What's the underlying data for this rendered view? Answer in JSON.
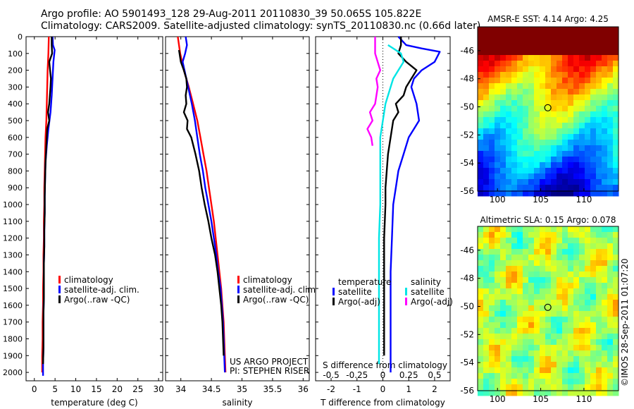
{
  "header": {
    "line1": "Argo profile: AO 5901493_128 29-Aug-2011 20110830_39 50.065S 105.822E",
    "line2": "Climatology: CARS2009. Satellite-adjusted climatology: synTS_20110830.nc (0.66d later)"
  },
  "credits": {
    "project": "US ARGO PROJECT",
    "pi": "PI: STEPHEN RISER",
    "imos": "©IMOS 28-Sep-2011 01:07:20"
  },
  "colors": {
    "climatology": "#ff0000",
    "satellite": "#0000ff",
    "argo": "#000000",
    "s_satellite": "#00e5e5",
    "s_argo": "#ff00ff",
    "sst_circle": "#000000"
  },
  "chart_data": [
    {
      "type": "line",
      "xlabel": "temperature (deg C)",
      "ylabel": "",
      "xlim": [
        -2,
        31
      ],
      "ylim": [
        2050,
        0
      ],
      "xticks": [
        0,
        5,
        10,
        15,
        20,
        25,
        30
      ],
      "yticks": [
        0,
        100,
        200,
        300,
        400,
        500,
        600,
        700,
        800,
        900,
        1000,
        1100,
        1200,
        1300,
        1400,
        1500,
        1600,
        1700,
        1800,
        1900,
        2000
      ],
      "legend": [
        "climatology",
        "satellite-adj. clim.",
        "Argo(..raw -QC)"
      ],
      "series": [
        {
          "name": "climatology",
          "color": "#ff0000",
          "points": [
            [
              3.5,
              0
            ],
            [
              3.4,
              100
            ],
            [
              3.2,
              200
            ],
            [
              3.1,
              300
            ],
            [
              3.0,
              400
            ],
            [
              2.9,
              500
            ],
            [
              2.7,
              600
            ],
            [
              2.6,
              700
            ],
            [
              2.5,
              800
            ],
            [
              2.4,
              900
            ],
            [
              2.4,
              1000
            ],
            [
              2.3,
              1100
            ],
            [
              2.3,
              1200
            ],
            [
              2.2,
              1300
            ],
            [
              2.2,
              1400
            ],
            [
              2.1,
              1500
            ],
            [
              2.1,
              1600
            ],
            [
              2.0,
              1700
            ],
            [
              2.0,
              1800
            ],
            [
              1.9,
              1900
            ],
            [
              1.9,
              2000
            ]
          ]
        },
        {
          "name": "satellite-adj. clim.",
          "color": "#0000ff",
          "points": [
            [
              4.4,
              0
            ],
            [
              4.5,
              50
            ],
            [
              4.9,
              80
            ],
            [
              4.6,
              150
            ],
            [
              4.4,
              250
            ],
            [
              4.2,
              350
            ],
            [
              3.9,
              450
            ],
            [
              3.4,
              550
            ],
            [
              3.0,
              650
            ],
            [
              2.7,
              750
            ],
            [
              2.6,
              850
            ],
            [
              2.5,
              950
            ],
            [
              2.5,
              1050
            ],
            [
              2.4,
              1150
            ],
            [
              2.4,
              1250
            ],
            [
              2.3,
              1350
            ],
            [
              2.3,
              1450
            ],
            [
              2.3,
              1550
            ],
            [
              2.2,
              1650
            ],
            [
              2.2,
              1750
            ],
            [
              2.2,
              1850
            ],
            [
              2.1,
              1950
            ],
            [
              2.1,
              2020
            ]
          ]
        },
        {
          "name": "Argo(..raw -QC)",
          "color": "#000000",
          "points": [
            [
              4.2,
              0
            ],
            [
              4.2,
              50
            ],
            [
              4.3,
              100
            ],
            [
              3.6,
              150
            ],
            [
              3.8,
              200
            ],
            [
              4.0,
              250
            ],
            [
              3.9,
              300
            ],
            [
              3.6,
              400
            ],
            [
              3.3,
              450
            ],
            [
              3.6,
              500
            ],
            [
              3.1,
              550
            ],
            [
              2.9,
              650
            ],
            [
              2.7,
              750
            ],
            [
              2.6,
              850
            ],
            [
              2.5,
              950
            ],
            [
              2.5,
              1050
            ],
            [
              2.4,
              1150
            ],
            [
              2.4,
              1250
            ],
            [
              2.3,
              1350
            ],
            [
              2.3,
              1450
            ],
            [
              2.3,
              1550
            ],
            [
              2.2,
              1650
            ],
            [
              2.2,
              1750
            ],
            [
              2.2,
              1850
            ],
            [
              2.1,
              1950
            ]
          ]
        }
      ]
    },
    {
      "type": "line",
      "xlabel": "salinity",
      "ylabel": "",
      "xlim": [
        33.75,
        36.1
      ],
      "ylim": [
        2050,
        0
      ],
      "xticks": [
        34,
        34.5,
        35,
        35.5,
        36
      ],
      "legend": [
        "climatology",
        "satellite-adj. clim.",
        "Argo(..raw -QC)"
      ],
      "series": [
        {
          "name": "climatology",
          "color": "#ff0000",
          "points": [
            [
              33.95,
              0
            ],
            [
              33.99,
              100
            ],
            [
              34.05,
              200
            ],
            [
              34.13,
              300
            ],
            [
              34.2,
              400
            ],
            [
              34.27,
              500
            ],
            [
              34.32,
              600
            ],
            [
              34.37,
              700
            ],
            [
              34.42,
              800
            ],
            [
              34.46,
              900
            ],
            [
              34.5,
              1000
            ],
            [
              34.54,
              1100
            ],
            [
              34.57,
              1200
            ],
            [
              34.6,
              1300
            ],
            [
              34.63,
              1400
            ],
            [
              34.66,
              1500
            ],
            [
              34.68,
              1600
            ],
            [
              34.7,
              1700
            ],
            [
              34.71,
              1800
            ],
            [
              34.72,
              1900
            ],
            [
              34.73,
              2000
            ]
          ]
        },
        {
          "name": "satellite-adj. clim.",
          "color": "#0000ff",
          "points": [
            [
              34.08,
              0
            ],
            [
              34.1,
              50
            ],
            [
              34.07,
              100
            ],
            [
              34.03,
              150
            ],
            [
              34.06,
              200
            ],
            [
              34.12,
              300
            ],
            [
              34.18,
              400
            ],
            [
              34.23,
              500
            ],
            [
              34.27,
              600
            ],
            [
              34.31,
              700
            ],
            [
              34.36,
              800
            ],
            [
              34.4,
              900
            ],
            [
              34.45,
              1000
            ],
            [
              34.5,
              1100
            ],
            [
              34.54,
              1200
            ],
            [
              34.58,
              1300
            ],
            [
              34.61,
              1400
            ],
            [
              34.65,
              1500
            ],
            [
              34.67,
              1600
            ],
            [
              34.69,
              1700
            ],
            [
              34.7,
              1800
            ],
            [
              34.71,
              1900
            ],
            [
              34.72,
              2000
            ]
          ]
        },
        {
          "name": "Argo(..raw -QC)",
          "color": "#000000",
          "points": [
            [
              33.97,
              80
            ],
            [
              34.0,
              150
            ],
            [
              34.05,
              200
            ],
            [
              34.09,
              250
            ],
            [
              34.1,
              300
            ],
            [
              34.08,
              350
            ],
            [
              34.09,
              400
            ],
            [
              34.05,
              450
            ],
            [
              34.11,
              500
            ],
            [
              34.1,
              550
            ],
            [
              34.17,
              600
            ],
            [
              34.24,
              700
            ],
            [
              34.3,
              800
            ],
            [
              34.34,
              900
            ],
            [
              34.39,
              1000
            ],
            [
              34.45,
              1100
            ],
            [
              34.5,
              1200
            ],
            [
              34.56,
              1300
            ],
            [
              34.6,
              1400
            ],
            [
              34.63,
              1500
            ],
            [
              34.66,
              1600
            ],
            [
              34.68,
              1700
            ],
            [
              34.69,
              1800
            ],
            [
              34.7,
              1900
            ]
          ]
        }
      ]
    },
    {
      "type": "line",
      "xlabel": "T difference from climatology",
      "title": "S difference from climatology",
      "ylabel": "",
      "xlim": [
        -2.6,
        2.6
      ],
      "ylim": [
        2050,
        0
      ],
      "xticks": [
        -2,
        -1,
        0,
        1,
        2
      ],
      "top_tick_labels": [
        "-0.5",
        "-0.25",
        "0",
        "0.25",
        "0.5"
      ],
      "legend": [
        "temperature",
        "satellite",
        "Argo(-adj)",
        "salinity",
        "satellite",
        "Argo(-adj)"
      ],
      "series": [
        {
          "name": "satellite",
          "color": "#0000ff",
          "points": [
            [
              0.6,
              0
            ],
            [
              0.9,
              50
            ],
            [
              1.5,
              70
            ],
            [
              2.2,
              90
            ],
            [
              2.0,
              150
            ],
            [
              1.5,
              200
            ],
            [
              1.2,
              250
            ],
            [
              1.1,
              300
            ],
            [
              1.3,
              400
            ],
            [
              1.4,
              500
            ],
            [
              1.2,
              550
            ],
            [
              1.0,
              600
            ],
            [
              0.8,
              700
            ],
            [
              0.6,
              800
            ],
            [
              0.5,
              900
            ],
            [
              0.4,
              1000
            ],
            [
              0.35,
              1200
            ],
            [
              0.3,
              1400
            ],
            [
              0.3,
              1600
            ],
            [
              0.3,
              1800
            ],
            [
              0.3,
              2000
            ]
          ]
        },
        {
          "name": "Argo(-adj)",
          "color": "#000000",
          "points": [
            [
              0.7,
              0
            ],
            [
              0.7,
              50
            ],
            [
              0.6,
              100
            ],
            [
              0.9,
              150
            ],
            [
              1.3,
              200
            ],
            [
              1.1,
              250
            ],
            [
              0.9,
              300
            ],
            [
              0.8,
              350
            ],
            [
              0.5,
              400
            ],
            [
              0.6,
              450
            ],
            [
              0.4,
              500
            ],
            [
              0.3,
              600
            ],
            [
              0.2,
              700
            ],
            [
              0.15,
              800
            ],
            [
              0.1,
              900
            ],
            [
              0.1,
              1000
            ],
            [
              0.05,
              1200
            ],
            [
              0.05,
              1400
            ],
            [
              0.05,
              1600
            ],
            [
              0.05,
              1800
            ],
            [
              0.05,
              1900
            ]
          ]
        },
        {
          "name": "satellite",
          "color": "#00e5e5",
          "points": [
            [
              0.2,
              50
            ],
            [
              0.7,
              100
            ],
            [
              0.8,
              150
            ],
            [
              0.6,
              200
            ],
            [
              0.4,
              250
            ],
            [
              0.3,
              300
            ],
            [
              0.1,
              400
            ],
            [
              0.0,
              500
            ],
            [
              -0.1,
              600
            ],
            [
              -0.1,
              800
            ],
            [
              -0.1,
              1000
            ],
            [
              -0.15,
              1200
            ],
            [
              -0.15,
              1400
            ],
            [
              -0.15,
              1600
            ],
            [
              -0.15,
              1800
            ],
            [
              -0.15,
              1950
            ]
          ]
        },
        {
          "name": "Argo(-adj)",
          "color": "#ff00ff",
          "points": [
            [
              -0.3,
              0
            ],
            [
              -0.3,
              100
            ],
            [
              -0.1,
              200
            ],
            [
              -0.25,
              250
            ],
            [
              -0.2,
              300
            ],
            [
              -0.3,
              400
            ],
            [
              -0.5,
              450
            ],
            [
              -0.4,
              500
            ],
            [
              -0.6,
              550
            ],
            [
              -0.45,
              600
            ],
            [
              -0.4,
              650
            ]
          ]
        }
      ]
    },
    {
      "type": "heatmap",
      "title": "AMSR-E SST: 4.14  Argo: 4.25",
      "xlim": [
        97.7,
        114
      ],
      "ylim": [
        -56,
        -44.3
      ],
      "xticks": [
        100,
        105,
        110
      ],
      "yticks": [
        -46,
        -48,
        -50,
        -52,
        -54,
        -56
      ],
      "marker": [
        105.822,
        -50.065
      ]
    },
    {
      "type": "heatmap",
      "title": "Altimetric SLA: 0.15  Argo: 0.078",
      "xlim": [
        97.7,
        114
      ],
      "ylim": [
        -56,
        -44.3
      ],
      "xticks": [
        100,
        105,
        110
      ],
      "yticks": [
        -46,
        -48,
        -50,
        -52,
        -54,
        -56
      ],
      "marker": [
        105.822,
        -50.065
      ]
    }
  ]
}
